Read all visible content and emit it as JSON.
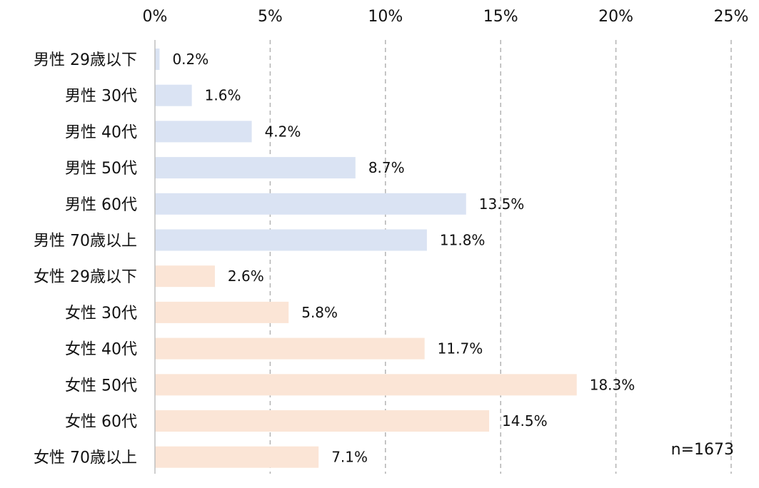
{
  "chart_data": {
    "type": "bar",
    "orientation": "horizontal",
    "categories": [
      "男性 29歳以下",
      "男性 30代",
      "男性 40代",
      "男性 50代",
      "男性 60代",
      "男性 70歳以上",
      "女性 29歳以下",
      "女性 30代",
      "女性 40代",
      "女性 50代",
      "女性 60代",
      "女性 70歳以上"
    ],
    "values": [
      0.2,
      1.6,
      4.2,
      8.7,
      13.5,
      11.8,
      2.6,
      5.8,
      11.7,
      18.3,
      14.5,
      7.1
    ],
    "value_labels": [
      "0.2%",
      "1.6%",
      "4.2%",
      "8.7%",
      "13.5%",
      "11.8%",
      "2.6%",
      "5.8%",
      "11.7%",
      "18.3%",
      "14.5%",
      "7.1%"
    ],
    "colors": [
      "#dae3f3",
      "#dae3f3",
      "#dae3f3",
      "#dae3f3",
      "#dae3f3",
      "#dae3f3",
      "#fbe5d6",
      "#fbe5d6",
      "#fbe5d6",
      "#fbe5d6",
      "#fbe5d6",
      "#fbe5d6"
    ],
    "xlim": [
      0,
      25
    ],
    "xticks": [
      0,
      5,
      10,
      15,
      20,
      25
    ],
    "xtick_labels": [
      "0%",
      "5%",
      "10%",
      "15%",
      "20%",
      "25%"
    ],
    "x_axis_position": "top",
    "grid": true,
    "grid_color": "#b3b3b3",
    "title": "",
    "xlabel": "",
    "ylabel": "",
    "annotation": "n=1673"
  }
}
